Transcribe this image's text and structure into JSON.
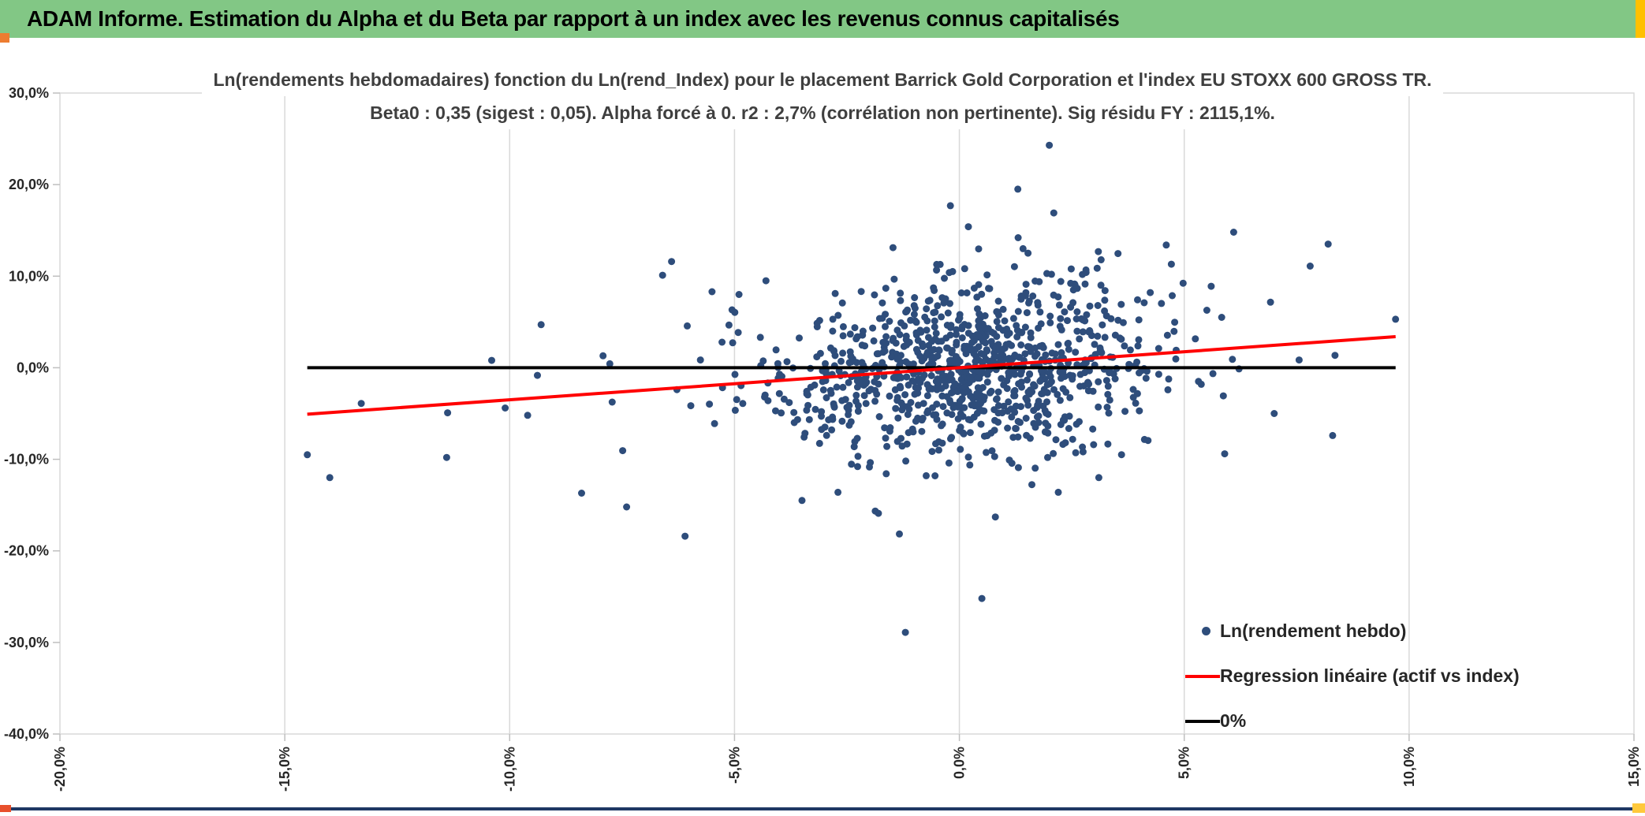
{
  "header": {
    "title": "ADAM Informe. Estimation du Alpha et du Beta par rapport à un index avec les revenus connus capitalisés"
  },
  "chart_data": {
    "type": "scatter",
    "title_line1": "Ln(rendements hebdomadaires) fonction du Ln(rend_Index) pour le placement Barrick Gold Corporation et l'index EU STOXX 600 GROSS TR.",
    "title_line2": "Beta0 : 0,35 (sigest : 0,05). Alpha forcé à 0. r2 : 2,7% (corrélation non pertinente). Sig résidu FY : 2115,1%.",
    "stats": {
      "beta0": "0,35",
      "sigest": "0,05",
      "alpha_force": "0",
      "r2": "2,7%",
      "correlation_note": "corrélation non pertinente",
      "sig_residu_FY": "2115,1%"
    },
    "x_axis": {
      "min": -20,
      "max": 15,
      "unit": "%",
      "label_rotation_deg": -90,
      "ticks": [
        {
          "v": -20,
          "label": "-20,0%"
        },
        {
          "v": -15,
          "label": "-15,0%"
        },
        {
          "v": -10,
          "label": "-10,0%"
        },
        {
          "v": -5,
          "label": "-5,0%"
        },
        {
          "v": 0,
          "label": "0,0%"
        },
        {
          "v": 5,
          "label": "5,0%"
        },
        {
          "v": 10,
          "label": "10,0%"
        },
        {
          "v": 15,
          "label": "15,0%"
        }
      ]
    },
    "y_axis": {
      "min": -40,
      "max": 30,
      "unit": "%",
      "ticks": [
        {
          "v": 30,
          "label": "30,0%"
        },
        {
          "v": 20,
          "label": "20,0%"
        },
        {
          "v": 10,
          "label": "10,0%"
        },
        {
          "v": 0,
          "label": "0,0%"
        },
        {
          "v": -10,
          "label": "-10,0%"
        },
        {
          "v": -20,
          "label": "-20,0%"
        },
        {
          "v": -30,
          "label": "-30,0%"
        },
        {
          "v": -40,
          "label": "-40,0%"
        }
      ]
    },
    "grid": "vertical-only",
    "legend_position": "bottom-right-inside",
    "colors": {
      "point": "#2E4D7B",
      "regression": "#FF0000",
      "zero_line": "#000000",
      "grid": "#D9D9D9",
      "axis": "#BFBFBF",
      "tick_text": "#262626",
      "title_text": "#3F3F3F"
    },
    "scatter": {
      "name": "Ln(rendement hebdo)",
      "color": "#2E4D7B",
      "point_radius": 4.5,
      "highlight_points": [
        [
          2.0,
          24.3
        ],
        [
          -1.2,
          -28.9
        ],
        [
          0.5,
          -25.2
        ],
        [
          -14.5,
          -9.5
        ],
        [
          -14.0,
          -12.0
        ],
        [
          -13.3,
          -3.9
        ],
        [
          -11.4,
          -9.8
        ],
        [
          -10.4,
          0.8
        ],
        [
          -10.1,
          -4.4
        ],
        [
          -9.6,
          -5.2
        ],
        [
          -9.3,
          4.7
        ],
        [
          -8.4,
          -13.7
        ],
        [
          -7.4,
          -15.2
        ],
        [
          -6.6,
          10.1
        ],
        [
          -6.4,
          11.6
        ],
        [
          -6.1,
          -18.4
        ],
        [
          -5.5,
          8.3
        ],
        [
          -4.9,
          8.0
        ],
        [
          -4.3,
          9.5
        ],
        [
          -3.5,
          -14.5
        ],
        [
          -2.7,
          -13.6
        ],
        [
          -1.8,
          -15.9
        ],
        [
          -0.2,
          17.7
        ],
        [
          0.2,
          15.4
        ],
        [
          0.8,
          -16.3
        ],
        [
          1.3,
          19.5
        ],
        [
          2.1,
          16.9
        ],
        [
          2.2,
          -13.6
        ],
        [
          3.1,
          -12.0
        ],
        [
          4.6,
          13.4
        ],
        [
          5.6,
          8.9
        ],
        [
          5.9,
          -9.4
        ],
        [
          6.1,
          14.8
        ],
        [
          7.0,
          -5.0
        ],
        [
          7.8,
          11.1
        ],
        [
          8.2,
          13.5
        ],
        [
          8.3,
          -7.4
        ],
        [
          9.7,
          5.3
        ]
      ],
      "cloud": {
        "count": 1000,
        "seed": 20240517,
        "x_mean": 0.3,
        "x_sd": 2.1,
        "wide_fraction": 0.05,
        "wide_x_sd": 5.0,
        "beta": 0.35,
        "residual_sd": 4.4,
        "tail_fraction": 0.04,
        "tail_mult": 2.4,
        "x_range": [
          -14.6,
          9.8
        ],
        "y_range": [
          -21.5,
          21.5
        ]
      }
    },
    "regression_line": {
      "beta": 0.35,
      "alpha": 0,
      "x_start": -14.5,
      "x_end": 9.7,
      "color": "#FF0000"
    },
    "zero_line": {
      "y": 0,
      "x_start": -14.5,
      "x_end": 9.7,
      "color": "#000000"
    },
    "legend": [
      {
        "label": "Ln(rendement hebdo)",
        "marker": "dot",
        "color": "#2E4D7B"
      },
      {
        "label": "Regression linéaire (actif vs index)",
        "marker": "line",
        "color": "#FF0000"
      },
      {
        "label": "0%",
        "marker": "line",
        "color": "#000000"
      }
    ]
  },
  "accents": {
    "header_bg": "#82C785",
    "header_text": "#000000",
    "top_left_square": "#ED7D31",
    "top_right_block": "#FFC000",
    "bottom_line": "#1F3864",
    "bottom_left_square": "#E8502C",
    "bottom_right_square": "#FFC93C"
  }
}
